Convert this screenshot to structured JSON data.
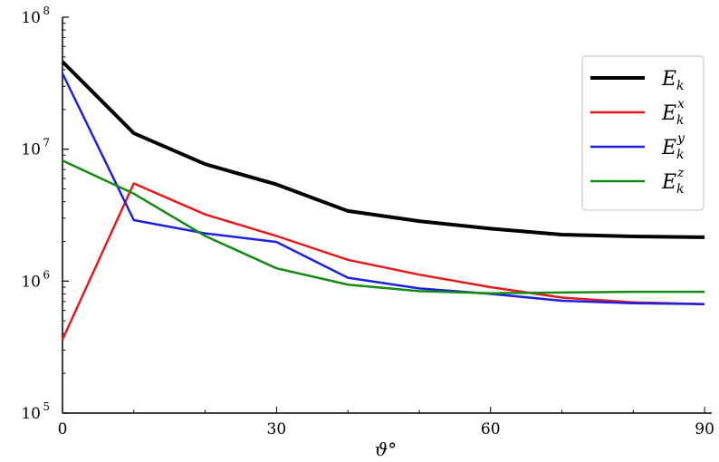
{
  "chart_data": {
    "type": "line",
    "title": "",
    "xlabel": "ϑ°",
    "ylabel": "",
    "xlim": [
      0,
      91
    ],
    "ylim": [
      100000,
      100000000
    ],
    "yscale": "log",
    "grid": false,
    "legend_position": "top-right",
    "x": [
      0,
      10,
      20,
      30,
      40,
      50,
      60,
      70,
      80,
      90
    ],
    "x_ticks": [
      {
        "value": 0,
        "label": "0"
      },
      {
        "value": 30,
        "label": "30"
      },
      {
        "value": 60,
        "label": "60"
      },
      {
        "value": 90,
        "label": "90"
      }
    ],
    "y_ticks": [
      {
        "value": 100000,
        "base": "10",
        "exp": "5"
      },
      {
        "value": 1000000,
        "base": "10",
        "exp": "6"
      },
      {
        "value": 10000000,
        "base": "10",
        "exp": "7"
      },
      {
        "value": 100000000,
        "base": "10",
        "exp": "8"
      }
    ],
    "series": [
      {
        "name": "Ek",
        "legend_main": "E",
        "legend_sub": "k",
        "legend_sup": "",
        "color": "#000000",
        "width": 4,
        "values": [
          46000000,
          13200000,
          7700000,
          5400000,
          3400000,
          2850000,
          2500000,
          2250000,
          2180000,
          2150000
        ]
      },
      {
        "name": "Ekx",
        "legend_main": "E",
        "legend_sub": "k",
        "legend_sup": "x",
        "color": "#e31a1c",
        "width": 2.5,
        "values": [
          360000,
          5500000,
          3200000,
          2200000,
          1450000,
          1120000,
          900000,
          750000,
          690000,
          670000
        ]
      },
      {
        "name": "Eky",
        "legend_main": "E",
        "legend_sub": "k",
        "legend_sup": "y",
        "color": "#1f1fe0",
        "width": 2.5,
        "values": [
          37500000,
          2900000,
          2300000,
          1980000,
          1060000,
          880000,
          800000,
          710000,
          680000,
          670000
        ]
      },
      {
        "name": "Ekz",
        "legend_main": "E",
        "legend_sub": "k",
        "legend_sup": "z",
        "color": "#138a13",
        "width": 2.5,
        "values": [
          8200000,
          4600000,
          2200000,
          1250000,
          940000,
          840000,
          810000,
          820000,
          830000,
          830000
        ]
      }
    ]
  }
}
